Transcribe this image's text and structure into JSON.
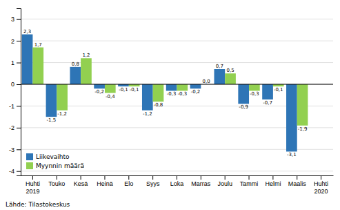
{
  "chart_data": {
    "type": "bar",
    "categories": [
      "Huhti\n2019",
      "Touko",
      "Kesä",
      "Heinä",
      "Elo",
      "Syys",
      "Loka",
      "Marras",
      "Joulu",
      "Tammi",
      "Helmi",
      "Maalis",
      "Huhti\n2020"
    ],
    "series": [
      {
        "name": "Liikevaihto",
        "color": "#2E75B6",
        "values": [
          2.3,
          -1.5,
          0.8,
          -0.2,
          -0.1,
          -1.2,
          -0.3,
          -0.2,
          0.7,
          -0.9,
          -0.7,
          -3.1,
          0
        ],
        "value_labels": [
          "2,3",
          "-1,5",
          "0,8",
          "-0,2",
          "-0,1",
          "-1,2",
          "-0,3",
          "-0,2",
          "0,7",
          "-0,9",
          "-0,7",
          "-3,1",
          null
        ]
      },
      {
        "name": "Myynnin määrä",
        "color": "#92D050",
        "values": [
          1.7,
          -1.2,
          1.2,
          -0.4,
          -0.1,
          -0.8,
          -0.3,
          0,
          0.5,
          -0.3,
          -0.1,
          -1.9,
          0
        ],
        "value_labels": [
          "1,7",
          "-1,2",
          "1,2",
          "-0,4",
          "-0,1",
          "-0,8",
          "-0,3",
          "0,0",
          "0,5",
          "-0,3",
          "-0,1",
          "-1,9",
          null
        ]
      }
    ],
    "ylim": [
      -4.2,
      3.5
    ],
    "yticks": [
      -4,
      -3,
      -2,
      -1,
      0,
      1,
      2,
      3
    ],
    "grid": true,
    "legend": "lower left",
    "data_labels": true,
    "annotations": [
      "Lähde: Tilastokeskus"
    ]
  }
}
